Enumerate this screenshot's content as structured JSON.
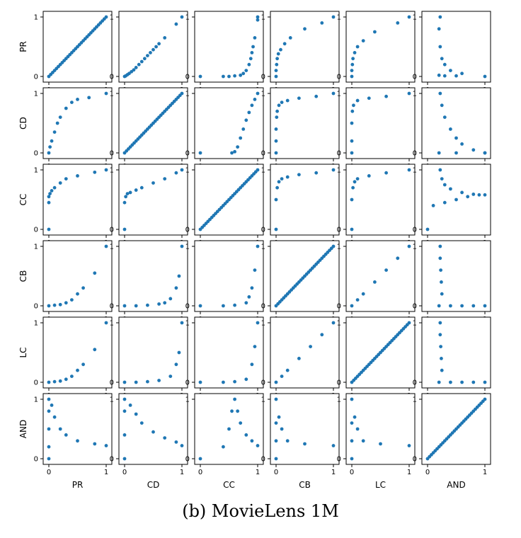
{
  "caption": "(b) MovieLens 1M",
  "chart_data": {
    "type": "scatter",
    "layout": "scatter-matrix",
    "metrics": [
      "PR",
      "CD",
      "CC",
      "CB",
      "LC",
      "AND"
    ],
    "xlim": [
      0,
      1
    ],
    "ylim": [
      0,
      1
    ],
    "xticks": [
      0,
      1
    ],
    "yticks": [
      0,
      1
    ],
    "point_color": "#1f77b4",
    "cells": {
      "PR|CD": [
        [
          0,
          0
        ],
        [
          0.02,
          0.01
        ],
        [
          0.05,
          0.03
        ],
        [
          0.08,
          0.05
        ],
        [
          0.12,
          0.08
        ],
        [
          0.16,
          0.11
        ],
        [
          0.2,
          0.15
        ],
        [
          0.25,
          0.2
        ],
        [
          0.3,
          0.25
        ],
        [
          0.35,
          0.3
        ],
        [
          0.4,
          0.35
        ],
        [
          0.45,
          0.4
        ],
        [
          0.5,
          0.45
        ],
        [
          0.55,
          0.5
        ],
        [
          0.6,
          0.55
        ],
        [
          0.7,
          0.65
        ],
        [
          0.9,
          0.88
        ],
        [
          1,
          1
        ]
      ],
      "PR|CC": [
        [
          0,
          0
        ],
        [
          0.4,
          0
        ],
        [
          0.5,
          0
        ],
        [
          0.6,
          0.01
        ],
        [
          0.7,
          0.02
        ],
        [
          0.75,
          0.05
        ],
        [
          0.8,
          0.1
        ],
        [
          0.85,
          0.2
        ],
        [
          0.88,
          0.3
        ],
        [
          0.9,
          0.4
        ],
        [
          0.92,
          0.5
        ],
        [
          0.95,
          0.65
        ],
        [
          1,
          0.95
        ],
        [
          1,
          1
        ]
      ],
      "PR|CB": [
        [
          0,
          0
        ],
        [
          0,
          0.1
        ],
        [
          0.01,
          0.2
        ],
        [
          0.02,
          0.3
        ],
        [
          0.04,
          0.38
        ],
        [
          0.08,
          0.45
        ],
        [
          0.15,
          0.55
        ],
        [
          0.25,
          0.65
        ],
        [
          0.5,
          0.8
        ],
        [
          0.8,
          0.9
        ],
        [
          1,
          1
        ]
      ],
      "PR|LC": [
        [
          0,
          0
        ],
        [
          0,
          0.1
        ],
        [
          0.01,
          0.2
        ],
        [
          0.02,
          0.3
        ],
        [
          0.05,
          0.4
        ],
        [
          0.1,
          0.5
        ],
        [
          0.2,
          0.6
        ],
        [
          0.4,
          0.75
        ],
        [
          0.8,
          0.9
        ],
        [
          1,
          1
        ]
      ],
      "PR|AND": [
        [
          0.2,
          0.02
        ],
        [
          0.3,
          0.01
        ],
        [
          0.5,
          0.01
        ],
        [
          1,
          0
        ],
        [
          0.22,
          0.5
        ],
        [
          0.25,
          0.3
        ],
        [
          0.3,
          0.2
        ],
        [
          0.4,
          0.1
        ],
        [
          0.6,
          0.05
        ],
        [
          0.22,
          1
        ],
        [
          0.2,
          0.8
        ]
      ],
      "CD|PR": [
        [
          0,
          0
        ],
        [
          0.02,
          0.1
        ],
        [
          0.05,
          0.2
        ],
        [
          0.1,
          0.35
        ],
        [
          0.15,
          0.5
        ],
        [
          0.2,
          0.6
        ],
        [
          0.3,
          0.75
        ],
        [
          0.4,
          0.85
        ],
        [
          0.5,
          0.9
        ],
        [
          0.7,
          0.93
        ],
        [
          1,
          1
        ]
      ],
      "CD|CC": [
        [
          0,
          0
        ],
        [
          0.55,
          0
        ],
        [
          0.6,
          0.02
        ],
        [
          0.65,
          0.1
        ],
        [
          0.7,
          0.25
        ],
        [
          0.75,
          0.4
        ],
        [
          0.8,
          0.55
        ],
        [
          0.85,
          0.68
        ],
        [
          0.9,
          0.8
        ],
        [
          0.95,
          0.9
        ],
        [
          1,
          1
        ]
      ],
      "CD|CB": [
        [
          0,
          0
        ],
        [
          0,
          0.2
        ],
        [
          0,
          0.4
        ],
        [
          0.01,
          0.6
        ],
        [
          0.02,
          0.7
        ],
        [
          0.05,
          0.8
        ],
        [
          0.1,
          0.85
        ],
        [
          0.2,
          0.88
        ],
        [
          0.4,
          0.92
        ],
        [
          0.7,
          0.95
        ],
        [
          1,
          1
        ]
      ],
      "CD|LC": [
        [
          0,
          0
        ],
        [
          0,
          0.2
        ],
        [
          0,
          0.5
        ],
        [
          0.01,
          0.7
        ],
        [
          0.03,
          0.8
        ],
        [
          0.1,
          0.88
        ],
        [
          0.3,
          0.92
        ],
        [
          0.6,
          0.95
        ],
        [
          1,
          1
        ]
      ],
      "CD|AND": [
        [
          0.2,
          0
        ],
        [
          0.5,
          0
        ],
        [
          1,
          0
        ],
        [
          0.22,
          1
        ],
        [
          0.25,
          0.8
        ],
        [
          0.3,
          0.6
        ],
        [
          0.4,
          0.4
        ],
        [
          0.5,
          0.25
        ],
        [
          0.6,
          0.15
        ],
        [
          0.8,
          0.05
        ],
        [
          1,
          0
        ]
      ],
      "CC|PR": [
        [
          0,
          0
        ],
        [
          0,
          0.45
        ],
        [
          0,
          0.55
        ],
        [
          0.02,
          0.6
        ],
        [
          0.05,
          0.65
        ],
        [
          0.1,
          0.7
        ],
        [
          0.2,
          0.78
        ],
        [
          0.3,
          0.85
        ],
        [
          0.5,
          0.9
        ],
        [
          0.8,
          0.96
        ],
        [
          1,
          1
        ]
      ],
      "CC|CD": [
        [
          0,
          0
        ],
        [
          0,
          0.45
        ],
        [
          0.02,
          0.55
        ],
        [
          0.05,
          0.6
        ],
        [
          0.1,
          0.62
        ],
        [
          0.2,
          0.66
        ],
        [
          0.3,
          0.7
        ],
        [
          0.5,
          0.78
        ],
        [
          0.7,
          0.85
        ],
        [
          0.9,
          0.95
        ],
        [
          1,
          1
        ]
      ],
      "CC|CB": [
        [
          0,
          0
        ],
        [
          0,
          0.5
        ],
        [
          0.02,
          0.7
        ],
        [
          0.05,
          0.8
        ],
        [
          0.1,
          0.85
        ],
        [
          0.2,
          0.88
        ],
        [
          0.4,
          0.92
        ],
        [
          0.7,
          0.95
        ],
        [
          1,
          1
        ]
      ],
      "CC|LC": [
        [
          0,
          0
        ],
        [
          0,
          0.5
        ],
        [
          0.02,
          0.7
        ],
        [
          0.05,
          0.8
        ],
        [
          0.1,
          0.85
        ],
        [
          0.3,
          0.9
        ],
        [
          0.6,
          0.95
        ],
        [
          1,
          1
        ]
      ],
      "CC|AND": [
        [
          0,
          0
        ],
        [
          0.1,
          0.4
        ],
        [
          0.3,
          0.45
        ],
        [
          0.5,
          0.5
        ],
        [
          0.7,
          0.55
        ],
        [
          0.9,
          0.58
        ],
        [
          1,
          0.58
        ],
        [
          0.22,
          1
        ],
        [
          0.25,
          0.85
        ],
        [
          0.3,
          0.75
        ],
        [
          0.4,
          0.68
        ],
        [
          0.6,
          0.62
        ],
        [
          0.8,
          0.59
        ]
      ],
      "CB|PR": [
        [
          0,
          0
        ],
        [
          0.1,
          0.01
        ],
        [
          0.2,
          0.02
        ],
        [
          0.3,
          0.05
        ],
        [
          0.4,
          0.1
        ],
        [
          0.5,
          0.2
        ],
        [
          0.6,
          0.3
        ],
        [
          0.8,
          0.55
        ],
        [
          1,
          1
        ]
      ],
      "CB|CD": [
        [
          0,
          0
        ],
        [
          0.2,
          0
        ],
        [
          0.4,
          0.01
        ],
        [
          0.6,
          0.03
        ],
        [
          0.7,
          0.05
        ],
        [
          0.8,
          0.12
        ],
        [
          0.9,
          0.3
        ],
        [
          0.95,
          0.5
        ],
        [
          1,
          1
        ]
      ],
      "CB|CC": [
        [
          0,
          0
        ],
        [
          0.4,
          0
        ],
        [
          0.6,
          0.01
        ],
        [
          0.8,
          0.05
        ],
        [
          0.85,
          0.15
        ],
        [
          0.9,
          0.3
        ],
        [
          0.95,
          0.6
        ],
        [
          1,
          1
        ]
      ],
      "CB|LC": [
        [
          0,
          0
        ],
        [
          0.1,
          0.1
        ],
        [
          0.2,
          0.2
        ],
        [
          0.4,
          0.4
        ],
        [
          0.6,
          0.6
        ],
        [
          0.8,
          0.8
        ],
        [
          1,
          1
        ]
      ],
      "CB|AND": [
        [
          0.2,
          0
        ],
        [
          0.4,
          0
        ],
        [
          0.6,
          0
        ],
        [
          0.8,
          0
        ],
        [
          1,
          0
        ],
        [
          0.22,
          1
        ],
        [
          0.22,
          0.8
        ],
        [
          0.23,
          0.6
        ],
        [
          0.24,
          0.4
        ],
        [
          0.25,
          0.2
        ]
      ],
      "LC|PR": [
        [
          0,
          0
        ],
        [
          0.1,
          0.01
        ],
        [
          0.2,
          0.02
        ],
        [
          0.3,
          0.05
        ],
        [
          0.4,
          0.1
        ],
        [
          0.5,
          0.2
        ],
        [
          0.6,
          0.3
        ],
        [
          0.8,
          0.55
        ],
        [
          1,
          1
        ]
      ],
      "LC|CD": [
        [
          0,
          0
        ],
        [
          0.2,
          0
        ],
        [
          0.4,
          0.01
        ],
        [
          0.6,
          0.03
        ],
        [
          0.8,
          0.1
        ],
        [
          0.9,
          0.3
        ],
        [
          0.95,
          0.5
        ],
        [
          1,
          1
        ]
      ],
      "LC|CC": [
        [
          0,
          0
        ],
        [
          0.4,
          0
        ],
        [
          0.6,
          0.01
        ],
        [
          0.8,
          0.05
        ],
        [
          0.9,
          0.3
        ],
        [
          0.95,
          0.6
        ],
        [
          1,
          1
        ]
      ],
      "LC|CB": [
        [
          0,
          0
        ],
        [
          0.1,
          0.1
        ],
        [
          0.2,
          0.2
        ],
        [
          0.4,
          0.4
        ],
        [
          0.6,
          0.6
        ],
        [
          0.8,
          0.8
        ],
        [
          1,
          1
        ]
      ],
      "LC|AND": [
        [
          0.2,
          0
        ],
        [
          0.4,
          0
        ],
        [
          0.6,
          0
        ],
        [
          0.8,
          0
        ],
        [
          1,
          0
        ],
        [
          0.22,
          1
        ],
        [
          0.22,
          0.8
        ],
        [
          0.23,
          0.6
        ],
        [
          0.24,
          0.4
        ],
        [
          0.25,
          0.2
        ]
      ],
      "AND|PR": [
        [
          0,
          0
        ],
        [
          0,
          0.2
        ],
        [
          0,
          0.5
        ],
        [
          0,
          0.8
        ],
        [
          0,
          1
        ],
        [
          0.05,
          0.9
        ],
        [
          0.1,
          0.7
        ],
        [
          0.2,
          0.5
        ],
        [
          0.3,
          0.4
        ],
        [
          0.5,
          0.3
        ],
        [
          0.8,
          0.25
        ],
        [
          1,
          0.22
        ]
      ],
      "AND|CD": [
        [
          0,
          0
        ],
        [
          0,
          0.4
        ],
        [
          0,
          0.8
        ],
        [
          0,
          1
        ],
        [
          0.1,
          0.9
        ],
        [
          0.2,
          0.75
        ],
        [
          0.3,
          0.6
        ],
        [
          0.5,
          0.45
        ],
        [
          0.7,
          0.35
        ],
        [
          0.9,
          0.28
        ],
        [
          1,
          0.22
        ]
      ],
      "AND|CC": [
        [
          0,
          0
        ],
        [
          0.4,
          0.2
        ],
        [
          0.5,
          0.5
        ],
        [
          0.55,
          0.8
        ],
        [
          0.6,
          1
        ],
        [
          0.65,
          0.8
        ],
        [
          0.7,
          0.6
        ],
        [
          0.8,
          0.4
        ],
        [
          0.9,
          0.3
        ],
        [
          1,
          0.22
        ]
      ],
      "AND|CB": [
        [
          0,
          0
        ],
        [
          0,
          0.3
        ],
        [
          0,
          0.6
        ],
        [
          0,
          1
        ],
        [
          0.05,
          0.7
        ],
        [
          0.1,
          0.5
        ],
        [
          0.2,
          0.3
        ],
        [
          0.5,
          0.25
        ],
        [
          1,
          0.22
        ]
      ],
      "AND|LC": [
        [
          0,
          0
        ],
        [
          0,
          0.3
        ],
        [
          0,
          0.6
        ],
        [
          0,
          1
        ],
        [
          0.05,
          0.7
        ],
        [
          0.1,
          0.5
        ],
        [
          0.2,
          0.3
        ],
        [
          0.5,
          0.25
        ],
        [
          1,
          0.22
        ]
      ]
    }
  }
}
